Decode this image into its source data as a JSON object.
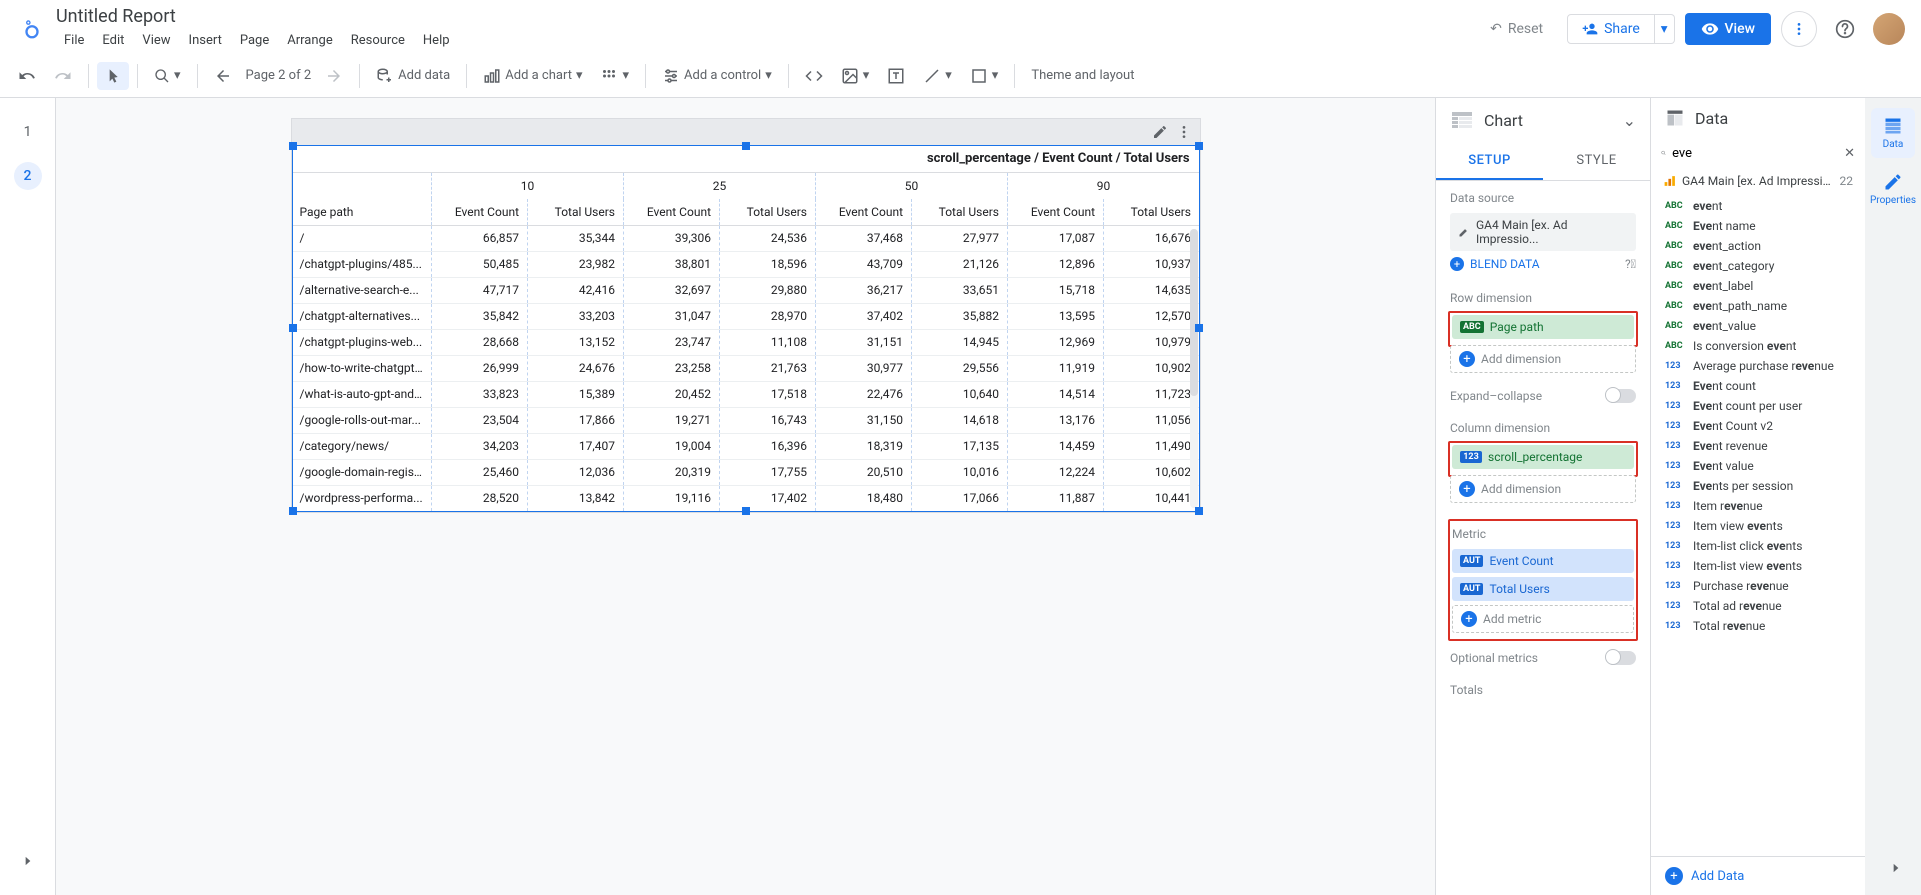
{
  "doc": {
    "title": "Untitled Report"
  },
  "menu": {
    "file": "File",
    "edit": "Edit",
    "view": "View",
    "insert": "Insert",
    "page": "Page",
    "arrange": "Arrange",
    "resource": "Resource",
    "help": "Help"
  },
  "header": {
    "reset": "Reset",
    "share": "Share",
    "view": "View"
  },
  "toolbar": {
    "page_label": "Page 2 of 2",
    "add_data": "Add data",
    "add_chart": "Add a chart",
    "add_control": "Add a control",
    "theme": "Theme and layout"
  },
  "pages": {
    "p1": "1",
    "p2": "2"
  },
  "chart": {
    "title": "scroll_percentage / Event Count / Total Users",
    "col_groups": [
      "10",
      "25",
      "50",
      "90"
    ],
    "row_header": "Page path",
    "sub_headers": [
      "Event Count",
      "Total Users"
    ],
    "rows": [
      {
        "path": "/",
        "v": [
          "66,857",
          "35,344",
          "39,306",
          "24,536",
          "37,468",
          "27,977",
          "17,087",
          "16,676"
        ]
      },
      {
        "path": "/chatgpt-plugins/485...",
        "v": [
          "50,485",
          "23,982",
          "38,801",
          "18,596",
          "43,709",
          "21,126",
          "12,896",
          "10,937"
        ]
      },
      {
        "path": "/alternative-search-e...",
        "v": [
          "47,717",
          "42,416",
          "32,697",
          "29,880",
          "36,217",
          "33,651",
          "15,718",
          "14,635"
        ]
      },
      {
        "path": "/chatgpt-alternatives...",
        "v": [
          "35,842",
          "33,203",
          "31,047",
          "28,970",
          "37,402",
          "35,882",
          "13,595",
          "12,570"
        ]
      },
      {
        "path": "/chatgpt-plugins-web...",
        "v": [
          "28,668",
          "13,152",
          "23,747",
          "11,108",
          "31,151",
          "14,945",
          "12,969",
          "10,979"
        ]
      },
      {
        "path": "/how-to-write-chatgpt...",
        "v": [
          "26,999",
          "24,676",
          "23,258",
          "21,763",
          "30,977",
          "29,556",
          "11,919",
          "10,902"
        ]
      },
      {
        "path": "/what-is-auto-gpt-and...",
        "v": [
          "33,823",
          "15,389",
          "20,452",
          "17,518",
          "22,476",
          "10,640",
          "14,514",
          "11,723"
        ]
      },
      {
        "path": "/google-rolls-out-mar...",
        "v": [
          "23,504",
          "17,866",
          "19,271",
          "16,743",
          "31,150",
          "14,618",
          "13,176",
          "11,056"
        ]
      },
      {
        "path": "/category/news/",
        "v": [
          "34,203",
          "17,407",
          "19,004",
          "16,396",
          "18,319",
          "17,135",
          "14,459",
          "11,490"
        ]
      },
      {
        "path": "/google-domain-regis...",
        "v": [
          "25,460",
          "12,036",
          "20,319",
          "17,755",
          "20,510",
          "10,016",
          "12,224",
          "10,602"
        ]
      },
      {
        "path": "/wordpress-performa...",
        "v": [
          "28,520",
          "13,842",
          "19,116",
          "17,402",
          "18,480",
          "17,066",
          "11,887",
          "10,441"
        ]
      }
    ]
  },
  "panel": {
    "chart_label": "Chart",
    "setup": "SETUP",
    "style": "STYLE",
    "data_source": "Data source",
    "ds_name": "GA4 Main [ex. Ad Impressio...",
    "blend": "BLEND DATA",
    "row_dim": "Row dimension",
    "row_field": "Page path",
    "add_dim": "Add dimension",
    "expand_collapse": "Expand–collapse",
    "col_dim": "Column dimension",
    "col_field": "scroll_percentage",
    "metric": "Metric",
    "m1": "Event Count",
    "m2": "Total Users",
    "add_metric": "Add metric",
    "opt_metrics": "Optional metrics",
    "totals": "Totals"
  },
  "data_panel": {
    "title": "Data",
    "search": "eve",
    "source": "GA4 Main [ex. Ad Impressions]",
    "count": "22",
    "add_data": "Add Data",
    "fields": [
      {
        "t": "abc",
        "n": "event",
        "hl": "eve"
      },
      {
        "t": "abc",
        "n": "Event name",
        "hl": "Eve"
      },
      {
        "t": "abc",
        "n": "event_action",
        "hl": "eve"
      },
      {
        "t": "abc",
        "n": "event_category",
        "hl": "eve"
      },
      {
        "t": "abc",
        "n": "event_label",
        "hl": "eve"
      },
      {
        "t": "abc",
        "n": "event_path_name",
        "hl": "eve"
      },
      {
        "t": "abc",
        "n": "event_value",
        "hl": "eve"
      },
      {
        "t": "abc",
        "n": "Is conversion event",
        "hl": "eve"
      },
      {
        "t": "num",
        "n": "Average purchase revenue",
        "hl": "eve"
      },
      {
        "t": "num",
        "n": "Event count",
        "hl": "Eve"
      },
      {
        "t": "num",
        "n": "Event count per user",
        "hl": "Eve"
      },
      {
        "t": "num",
        "n": "Event Count v2",
        "hl": "Eve"
      },
      {
        "t": "num",
        "n": "Event revenue",
        "hl": "Eve"
      },
      {
        "t": "num",
        "n": "Event value",
        "hl": "Eve"
      },
      {
        "t": "num",
        "n": "Events per session",
        "hl": "Eve"
      },
      {
        "t": "num",
        "n": "Item revenue",
        "hl": "eve"
      },
      {
        "t": "num",
        "n": "Item view events",
        "hl": "eve"
      },
      {
        "t": "num",
        "n": "Item-list click events",
        "hl": "eve"
      },
      {
        "t": "num",
        "n": "Item-list view events",
        "hl": "eve"
      },
      {
        "t": "num",
        "n": "Purchase revenue",
        "hl": "eve"
      },
      {
        "t": "num",
        "n": "Total ad revenue",
        "hl": "eve"
      },
      {
        "t": "num",
        "n": "Total revenue",
        "hl": "eve"
      }
    ]
  },
  "rail": {
    "data": "Data",
    "properties": "Properties"
  },
  "colors": {
    "accent": "#1a73e8",
    "green": "#137333",
    "blue": "#1967d2"
  }
}
